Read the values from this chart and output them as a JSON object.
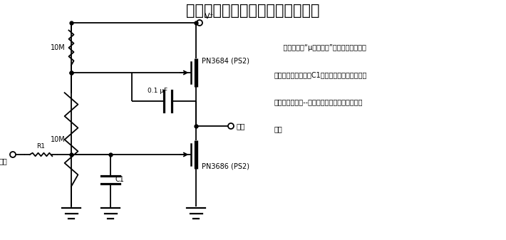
{
  "title": "与结型场效应管交流耦合的积分器",
  "title_fontsize": 15,
  "description_lines": [
    "    本电路采用“μ型放大器”技术来达到极高的",
    "电压增益。在电路中C1用作密勒积分器或电容倍",
    "增器，就能使这--简单电路具有非常大的时间常",
    "数。"
  ],
  "background_color": "#ffffff",
  "line_color": "#000000",
  "text_color": "#000000",
  "label_10M_top": "10M",
  "label_10M_bot": "10M",
  "label_cap": "0.1 μF",
  "label_C1": "C1",
  "label_R1": "R1",
  "label_jfet_top": "PN3684 (PS2)",
  "label_jfet_bot": "PN3686 (PS2)",
  "label_vplus": "V⁺",
  "label_output": "输出",
  "label_input": "输入"
}
